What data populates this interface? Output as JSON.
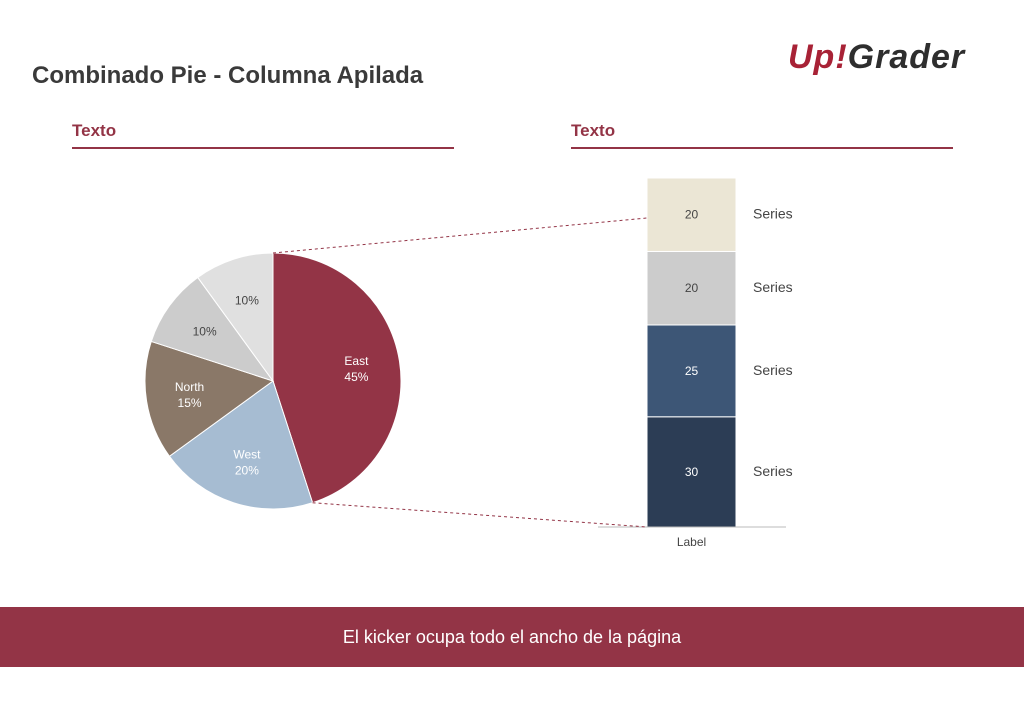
{
  "page": {
    "title": "Combinado Pie - Columna Apilada",
    "logo": {
      "part1": "Up!",
      "part2": "Grader"
    },
    "left_header": "Texto",
    "right_header": "Texto",
    "footer": "El kicker ocupa todo el ancho de la página"
  },
  "colors": {
    "accent": "#933446",
    "title": "#3a3a3a",
    "connector": "#933446"
  },
  "chart_data": [
    {
      "type": "pie",
      "slices": [
        {
          "label": "East",
          "value": 45,
          "display": "45%",
          "color": "#933446",
          "text_color": "#ffffff"
        },
        {
          "label": "West",
          "value": 20,
          "display": "20%",
          "color": "#a6bcd2",
          "text_color": "#ffffff"
        },
        {
          "label": "North",
          "value": 15,
          "display": "15%",
          "color": "#8a7868",
          "text_color": "#ffffff"
        },
        {
          "label": "",
          "value": 10,
          "display": "10%",
          "color": "#cccccc",
          "text_color": "#444444"
        },
        {
          "label": "",
          "value": 10,
          "display": "10%",
          "color": "#e0e0e0",
          "text_color": "#444444"
        }
      ]
    },
    {
      "type": "bar",
      "stacked": true,
      "categories": [
        "Label"
      ],
      "series": [
        {
          "name": "Series",
          "values": [
            30
          ],
          "color": "#2c3d55",
          "text_color": "#ffffff"
        },
        {
          "name": "Series",
          "values": [
            25
          ],
          "color": "#3d5676",
          "text_color": "#ffffff"
        },
        {
          "name": "Series",
          "values": [
            20
          ],
          "color": "#cccccc",
          "text_color": "#444444"
        },
        {
          "name": "Series",
          "values": [
            20
          ],
          "color": "#ebe6d5",
          "text_color": "#444444"
        }
      ]
    }
  ]
}
